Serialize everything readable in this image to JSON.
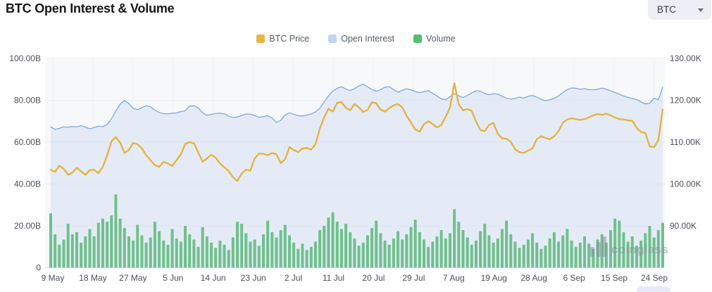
{
  "header": {
    "title": "BTC Open Interest & Volume",
    "symbol_select": {
      "value": "BTC"
    }
  },
  "watermark": {
    "text": "coinglass"
  },
  "chart_data": {
    "type": "combo line+area+bar",
    "x_tick_labels": [
      "9 May",
      "18 May",
      "27 May",
      "5 Jun",
      "14 Jun",
      "23 Jun",
      "2 Jul",
      "11 Jul",
      "20 Jul",
      "29 Jul",
      "7 Aug",
      "19 Aug",
      "28 Aug",
      "6 Sep",
      "15 Sep",
      "24 Sep"
    ],
    "left_axis": {
      "title": "",
      "unit": "B (USD)",
      "min": 0,
      "max": 100,
      "tick_labels_top_to_bottom": [
        "100.00B",
        "80.00B",
        "60.00B",
        "40.00B",
        "20.00B",
        "0"
      ]
    },
    "right_axis": {
      "title": "",
      "unit": "K (USD)",
      "min": 80,
      "max": 130,
      "tick_labels_top_to_bottom": [
        "130.00K",
        "120.00K",
        "110.00K",
        "100.00K",
        "90.00K"
      ]
    },
    "grid": {
      "horizontal": true,
      "vertical": true
    },
    "legend_position": "top-center",
    "series": [
      {
        "name": "BTC Price",
        "type": "line",
        "axis": "right",
        "color": "#e5b13c",
        "legend_color": "#e9b440",
        "values": [
          103.4,
          102.9,
          104.4,
          103.6,
          102.2,
          102.7,
          103.9,
          103.0,
          102.2,
          103.3,
          103.4,
          102.6,
          104.1,
          106.8,
          110.2,
          111.2,
          109.9,
          107.4,
          108.1,
          109.8,
          109.5,
          108.5,
          106.9,
          105.7,
          104.5,
          104.1,
          105.3,
          104.9,
          104.3,
          105.7,
          107.1,
          109.6,
          110.0,
          109.7,
          107.5,
          105.3,
          106.1,
          107.0,
          106.3,
          104.9,
          104.0,
          103.1,
          101.6,
          100.7,
          102.5,
          103.4,
          103.2,
          106.1,
          107.3,
          107.2,
          106.9,
          107.4,
          107.1,
          105.0,
          105.9,
          108.8,
          108.1,
          107.6,
          108.5,
          108.6,
          108.2,
          109.5,
          113.2,
          115.9,
          118.0,
          117.3,
          119.4,
          119.6,
          118.2,
          117.6,
          119.1,
          118.3,
          117.2,
          117.7,
          119.5,
          119.3,
          117.8,
          117.3,
          118.1,
          118.8,
          119.1,
          118.3,
          116.3,
          114.7,
          113.0,
          112.5,
          114.3,
          115.0,
          114.3,
          113.5,
          114.1,
          116.1,
          118.3,
          124.1,
          119.0,
          117.6,
          117.9,
          117.5,
          114.9,
          112.9,
          112.6,
          114.1,
          114.6,
          112.0,
          110.9,
          110.8,
          110.1,
          108.3,
          107.6,
          107.4,
          108.0,
          108.5,
          110.7,
          111.4,
          111.0,
          110.7,
          111.4,
          112.6,
          114.6,
          115.4,
          115.7,
          115.5,
          115.3,
          115.5,
          115.9,
          116.4,
          116.7,
          116.5,
          116.8,
          116.4,
          115.9,
          115.5,
          115.4,
          115.2,
          115.1,
          113.4,
          112.4,
          112.2,
          109.0,
          108.8,
          110.5,
          117.8
        ]
      },
      {
        "name": "Open Interest",
        "type": "area",
        "axis": "left",
        "color": "#82a8d8",
        "fill": "#d7e2f4",
        "legend_color": "#c2d4f2",
        "values": [
          67.3,
          66.1,
          66.6,
          67.3,
          67.1,
          67.5,
          67.3,
          67.8,
          67.1,
          66.4,
          67.0,
          67.6,
          67.4,
          68.4,
          71.2,
          74.8,
          78.2,
          79.9,
          78.5,
          76.1,
          75.5,
          76.5,
          77.4,
          76.9,
          75.3,
          74.1,
          73.6,
          73.5,
          73.8,
          74.0,
          74.6,
          75.0,
          77.2,
          77.4,
          76.3,
          74.0,
          72.8,
          73.3,
          73.7,
          73.8,
          73.5,
          72.4,
          71.8,
          72.0,
          72.7,
          73.5,
          73.4,
          72.7,
          71.9,
          72.2,
          72.6,
          71.5,
          69.4,
          70.4,
          73.0,
          74.0,
          73.3,
          72.6,
          72.5,
          72.9,
          73.5,
          74.4,
          76.2,
          79.2,
          82.2,
          84.4,
          85.7,
          86.5,
          85.3,
          84.7,
          85.5,
          86.9,
          87.7,
          86.5,
          85.1,
          84.3,
          85.1,
          86.2,
          86.5,
          85.1,
          83.9,
          84.7,
          85.5,
          85.0,
          84.2,
          83.6,
          84.1,
          84.6,
          83.3,
          82.1,
          80.7,
          80.3,
          81.7,
          83.2,
          82.1,
          81.3,
          82.3,
          83.5,
          84.5,
          84.3,
          83.2,
          82.7,
          83.1,
          82.9,
          81.9,
          81.0,
          80.6,
          80.9,
          81.5,
          81.0,
          81.9,
          82.3,
          81.5,
          80.5,
          79.8,
          80.3,
          80.9,
          82.1,
          83.7,
          85.1,
          85.9,
          85.7,
          85.3,
          85.6,
          85.1,
          85.0,
          85.3,
          85.8,
          85.3,
          84.5,
          83.7,
          82.9,
          82.0,
          81.4,
          80.9,
          80.3,
          79.2,
          78.3,
          78.5,
          81.0,
          80.3,
          86.3
        ]
      },
      {
        "name": "Volume",
        "type": "bar",
        "axis": "left",
        "color": "#6fc08c",
        "legend_color": "#57be72",
        "values": [
          26,
          16,
          11,
          13.5,
          21,
          16,
          17,
          12,
          15,
          18.5,
          15,
          21.5,
          23.5,
          22,
          25,
          35,
          23.5,
          19,
          15,
          13,
          20.5,
          15.5,
          12,
          14.5,
          22,
          17.5,
          13,
          11,
          18.5,
          14,
          12.5,
          20,
          16,
          13.5,
          10,
          19.5,
          15,
          12,
          9.5,
          13,
          11,
          8.5,
          14.5,
          22,
          21,
          16.5,
          12.5,
          13.5,
          10.5,
          16,
          22.5,
          17,
          14.5,
          18,
          20.5,
          15.5,
          12,
          9,
          11.5,
          8.5,
          10,
          12.5,
          18,
          20,
          24,
          26.5,
          22,
          18.5,
          21,
          17,
          14,
          10.5,
          12,
          15.5,
          19,
          22.5,
          16.5,
          13,
          11,
          14,
          17.5,
          13.5,
          16,
          19.5,
          23,
          17,
          13.5,
          10,
          12.5,
          15,
          18,
          14,
          16.5,
          28,
          22,
          18,
          14.5,
          11,
          13,
          17.5,
          21,
          15.5,
          12,
          14,
          18.5,
          22.5,
          16,
          12.5,
          9.5,
          11,
          13.5,
          16.5,
          12,
          9,
          10.5,
          14,
          17,
          12.5,
          15.5,
          18.5,
          13,
          10,
          12,
          15,
          11.5,
          9,
          13.5,
          16,
          12,
          18,
          23.5,
          22.5,
          17,
          12.5,
          15,
          10.5,
          13,
          16.5,
          20,
          14.5,
          18,
          21.5
        ]
      }
    ]
  }
}
